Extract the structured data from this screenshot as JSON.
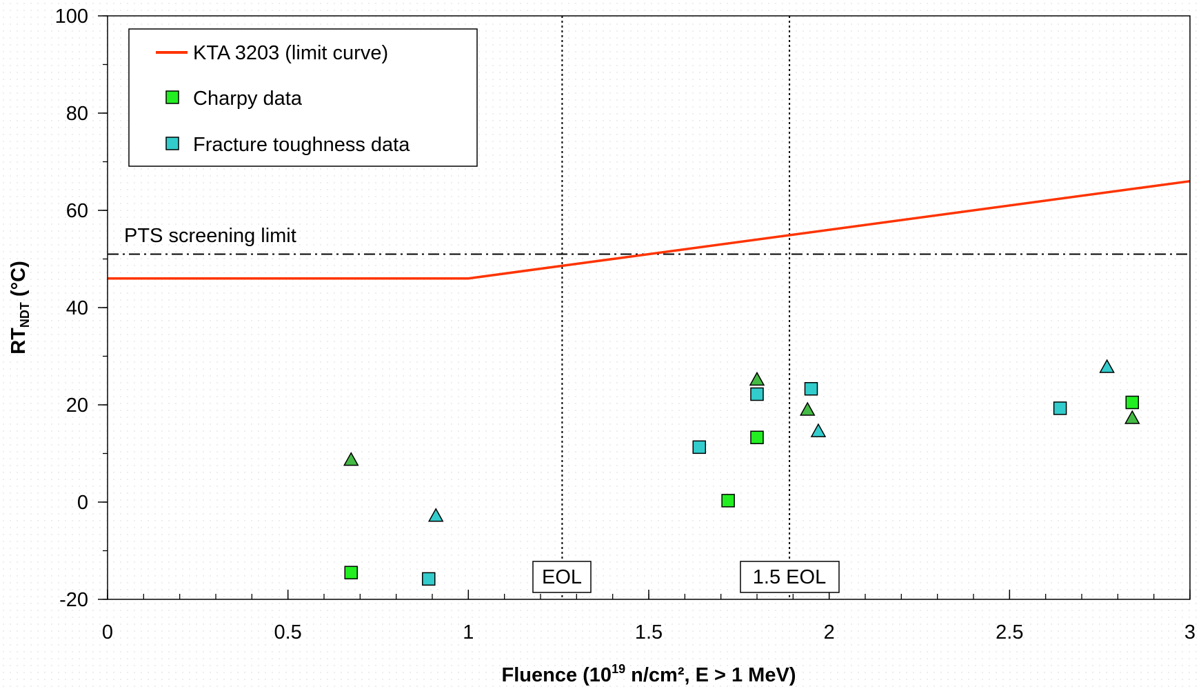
{
  "chart_data": {
    "type": "scatter",
    "xlabel_pre": "Fluence (10",
    "xlabel_sup": "19",
    "xlabel_post": " n/cm², E > 1 MeV)",
    "ylabel_main": "RT",
    "ylabel_sub": "NDT",
    "ylabel_post": " (°C)",
    "xlim": [
      0,
      3
    ],
    "ylim": [
      -20,
      100
    ],
    "x_ticks": [
      0,
      0.5,
      1,
      1.5,
      2,
      2.5,
      3
    ],
    "y_ticks": [
      -20,
      0,
      20,
      40,
      60,
      80,
      100
    ],
    "legend_position": "top-left",
    "legend": [
      {
        "label": "KTA 3203 (limit curve)",
        "marker": "line",
        "color": "#ff3300"
      },
      {
        "label": "Charpy data",
        "marker": "square",
        "color": "#22ee22"
      },
      {
        "label": "Fracture toughness data",
        "marker": "square",
        "color": "#33cccc"
      }
    ],
    "limit_curve": {
      "name": "KTA 3203 (limit curve)",
      "color": "#ff3300",
      "points": [
        [
          0,
          46
        ],
        [
          1,
          46
        ],
        [
          3,
          66
        ]
      ]
    },
    "screening_limit": {
      "label": "PTS screening limit",
      "y": 51
    },
    "vertical_lines": [
      {
        "label": "EOL",
        "x": 1.26
      },
      {
        "label": "1.5 EOL",
        "x": 1.89
      }
    ],
    "series": [
      {
        "name": "Charpy data",
        "marker": "square",
        "color": "#22ee22",
        "points": [
          [
            0.675,
            -14.5
          ],
          [
            1.72,
            0.3
          ],
          [
            1.8,
            13.3
          ],
          [
            2.84,
            20.5
          ]
        ]
      },
      {
        "name": "Fracture toughness data",
        "marker": "square",
        "color": "#33cccc",
        "points": [
          [
            0.89,
            -15.8
          ],
          [
            1.64,
            11.3
          ],
          [
            1.8,
            22.2
          ],
          [
            1.95,
            23.3
          ],
          [
            2.64,
            19.3
          ]
        ]
      },
      {
        "marker": "triangle",
        "color": "#44bb44",
        "points": [
          [
            0.675,
            8.7
          ],
          [
            1.8,
            25.2
          ],
          [
            1.94,
            19.0
          ],
          [
            2.84,
            17.3
          ]
        ]
      },
      {
        "marker": "triangle",
        "color": "#33cccc",
        "points": [
          [
            0.91,
            -2.8
          ],
          [
            1.97,
            14.6
          ],
          [
            2.77,
            27.8
          ]
        ]
      }
    ]
  }
}
